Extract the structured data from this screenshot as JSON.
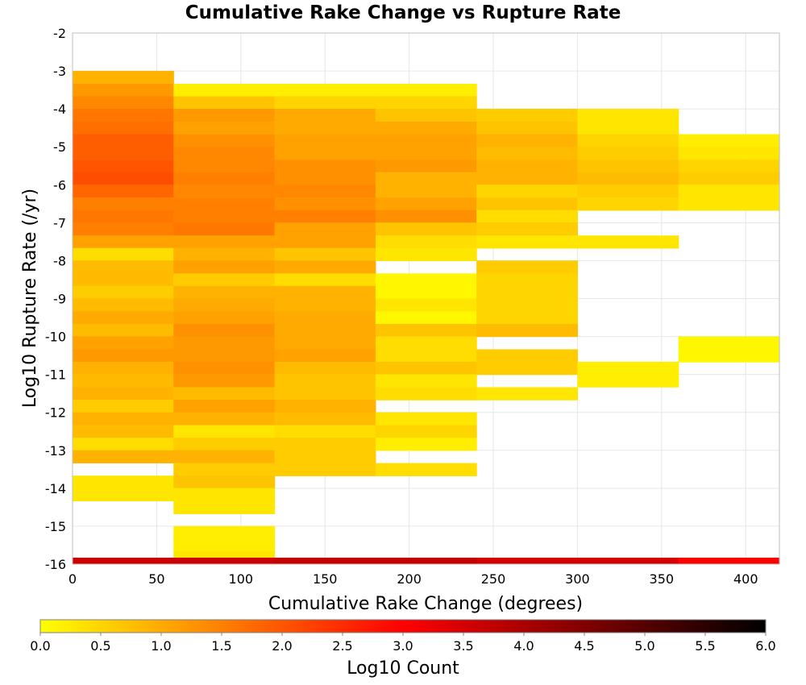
{
  "chart_data": {
    "type": "heatmap",
    "title": "Cumulative Rake Change vs Rupture Rate",
    "xlabel": "Cumulative Rake Change (degrees)",
    "ylabel": "Log10 Rupture Rate (/yr)",
    "xlim": [
      0,
      420
    ],
    "ylim": [
      -16,
      -2
    ],
    "x_ticks": [
      "0",
      "50",
      "100",
      "150",
      "200",
      "250",
      "300",
      "350",
      "400"
    ],
    "y_ticks": [
      "-2",
      "-3",
      "-4",
      "-5",
      "-6",
      "-7",
      "-8",
      "-9",
      "-10",
      "-11",
      "-12",
      "-13",
      "-14",
      "-15",
      "-16"
    ],
    "grid": true,
    "bin_width_x": 60,
    "bin_height_y": 0.333,
    "colorbar": {
      "label": "Log10 Count",
      "min": 0,
      "max": 6,
      "ticks": [
        "0.0",
        "0.5",
        "1.0",
        "1.5",
        "2.0",
        "2.5",
        "3.0",
        "3.5",
        "4.0",
        "4.5",
        "5.0",
        "5.5",
        "6.0"
      ],
      "colormap": [
        "#ffff00",
        "#ff8000",
        "#ff0000",
        "#800000",
        "#000000"
      ]
    },
    "columns": [
      {
        "x": 0,
        "cells": [
          {
            "y": -3.33,
            "v": 0.9
          },
          {
            "y": -3.67,
            "v": 1.2
          },
          {
            "y": -4.0,
            "v": 1.4
          },
          {
            "y": -4.33,
            "v": 1.6
          },
          {
            "y": -4.67,
            "v": 1.7
          },
          {
            "y": -5.0,
            "v": 1.9
          },
          {
            "y": -5.33,
            "v": 1.9
          },
          {
            "y": -5.67,
            "v": 2.0
          },
          {
            "y": -6.0,
            "v": 2.1
          },
          {
            "y": -6.33,
            "v": 1.8
          },
          {
            "y": -6.67,
            "v": 1.5
          },
          {
            "y": -7.0,
            "v": 1.6
          },
          {
            "y": -7.33,
            "v": 1.5
          },
          {
            "y": -7.67,
            "v": 1.1
          },
          {
            "y": -8.0,
            "v": 0.4
          },
          {
            "y": -8.33,
            "v": 0.8
          },
          {
            "y": -8.67,
            "v": 0.8
          },
          {
            "y": -9.0,
            "v": 0.6
          },
          {
            "y": -9.33,
            "v": 0.8
          },
          {
            "y": -9.67,
            "v": 1.0
          },
          {
            "y": -10.0,
            "v": 0.8
          },
          {
            "y": -10.33,
            "v": 1.1
          },
          {
            "y": -10.67,
            "v": 1.2
          },
          {
            "y": -11.0,
            "v": 0.9
          },
          {
            "y": -11.33,
            "v": 0.8
          },
          {
            "y": -11.67,
            "v": 0.9
          },
          {
            "y": -12.0,
            "v": 0.6
          },
          {
            "y": -12.33,
            "v": 0.9
          },
          {
            "y": -12.67,
            "v": 0.8
          },
          {
            "y": -13.0,
            "v": 0.4
          },
          {
            "y": -13.33,
            "v": 0.9
          },
          {
            "y": -14.0,
            "v": 0.3
          },
          {
            "y": -14.33,
            "v": 0.3
          }
        ]
      },
      {
        "x": 60,
        "cells": [
          {
            "y": -3.67,
            "v": 0.2
          },
          {
            "y": -4.0,
            "v": 0.7
          },
          {
            "y": -4.33,
            "v": 1.2
          },
          {
            "y": -4.67,
            "v": 1.1
          },
          {
            "y": -5.0,
            "v": 1.3
          },
          {
            "y": -5.33,
            "v": 1.4
          },
          {
            "y": -5.67,
            "v": 1.4
          },
          {
            "y": -6.0,
            "v": 1.5
          },
          {
            "y": -6.33,
            "v": 1.4
          },
          {
            "y": -6.67,
            "v": 1.5
          },
          {
            "y": -7.0,
            "v": 1.5
          },
          {
            "y": -7.33,
            "v": 1.6
          },
          {
            "y": -7.67,
            "v": 1.1
          },
          {
            "y": -8.0,
            "v": 0.9
          },
          {
            "y": -8.33,
            "v": 1.1
          },
          {
            "y": -8.67,
            "v": 0.6
          },
          {
            "y": -9.0,
            "v": 0.9
          },
          {
            "y": -9.33,
            "v": 1.0
          },
          {
            "y": -9.67,
            "v": 1.1
          },
          {
            "y": -10.0,
            "v": 1.3
          },
          {
            "y": -10.33,
            "v": 1.2
          },
          {
            "y": -10.67,
            "v": 1.2
          },
          {
            "y": -11.0,
            "v": 1.3
          },
          {
            "y": -11.33,
            "v": 1.2
          },
          {
            "y": -11.67,
            "v": 0.8
          },
          {
            "y": -12.0,
            "v": 1.1
          },
          {
            "y": -12.33,
            "v": 0.9
          },
          {
            "y": -12.67,
            "v": 0.3
          },
          {
            "y": -13.0,
            "v": 0.6
          },
          {
            "y": -13.33,
            "v": 0.9
          },
          {
            "y": -13.67,
            "v": 0.6
          },
          {
            "y": -14.0,
            "v": 0.7
          },
          {
            "y": -14.33,
            "v": 0.3
          },
          {
            "y": -14.67,
            "v": 0.3
          },
          {
            "y": -15.33,
            "v": 0.2
          },
          {
            "y": -15.67,
            "v": 0.2
          },
          {
            "y": -16.0,
            "v": 0.3
          }
        ]
      },
      {
        "x": 120,
        "cells": [
          {
            "y": -3.67,
            "v": 0.2
          },
          {
            "y": -4.0,
            "v": 0.5
          },
          {
            "y": -4.33,
            "v": 1.0
          },
          {
            "y": -4.67,
            "v": 1.0
          },
          {
            "y": -5.0,
            "v": 1.1
          },
          {
            "y": -5.33,
            "v": 1.1
          },
          {
            "y": -5.67,
            "v": 1.3
          },
          {
            "y": -6.0,
            "v": 1.3
          },
          {
            "y": -6.33,
            "v": 1.4
          },
          {
            "y": -6.67,
            "v": 1.3
          },
          {
            "y": -7.0,
            "v": 1.5
          },
          {
            "y": -7.33,
            "v": 1.1
          },
          {
            "y": -7.67,
            "v": 1.1
          },
          {
            "y": -8.0,
            "v": 0.7
          },
          {
            "y": -8.33,
            "v": 1.0
          },
          {
            "y": -8.67,
            "v": 0.4
          },
          {
            "y": -9.0,
            "v": 0.9
          },
          {
            "y": -9.33,
            "v": 0.9
          },
          {
            "y": -9.67,
            "v": 1.0
          },
          {
            "y": -10.0,
            "v": 1.0
          },
          {
            "y": -10.33,
            "v": 1.0
          },
          {
            "y": -10.67,
            "v": 1.1
          },
          {
            "y": -11.0,
            "v": 0.8
          },
          {
            "y": -11.33,
            "v": 0.7
          },
          {
            "y": -11.67,
            "v": 0.7
          },
          {
            "y": -12.0,
            "v": 0.9
          },
          {
            "y": -12.33,
            "v": 0.8
          },
          {
            "y": -12.67,
            "v": 0.4
          },
          {
            "y": -13.0,
            "v": 0.6
          },
          {
            "y": -13.33,
            "v": 0.6
          },
          {
            "y": -13.67,
            "v": 0.6
          }
        ]
      },
      {
        "x": 180,
        "cells": [
          {
            "y": -3.67,
            "v": 0.2
          },
          {
            "y": -4.0,
            "v": 0.5
          },
          {
            "y": -4.33,
            "v": 0.7
          },
          {
            "y": -4.67,
            "v": 1.0
          },
          {
            "y": -5.0,
            "v": 1.1
          },
          {
            "y": -5.33,
            "v": 1.1
          },
          {
            "y": -5.67,
            "v": 1.2
          },
          {
            "y": -6.0,
            "v": 0.9
          },
          {
            "y": -6.33,
            "v": 0.9
          },
          {
            "y": -6.67,
            "v": 1.1
          },
          {
            "y": -7.0,
            "v": 1.3
          },
          {
            "y": -7.33,
            "v": 0.7
          },
          {
            "y": -7.67,
            "v": 0.4
          },
          {
            "y": -8.0,
            "v": 0.3
          },
          {
            "y": -8.67,
            "v": 0.1
          },
          {
            "y": -9.0,
            "v": 0.1
          },
          {
            "y": -9.33,
            "v": 0.3
          },
          {
            "y": -9.67,
            "v": 0.1
          },
          {
            "y": -10.0,
            "v": 0.7
          },
          {
            "y": -10.33,
            "v": 0.4
          },
          {
            "y": -10.67,
            "v": 0.4
          },
          {
            "y": -11.0,
            "v": 0.7
          },
          {
            "y": -11.33,
            "v": 0.3
          },
          {
            "y": -11.67,
            "v": 0.4
          },
          {
            "y": -12.33,
            "v": 0.3
          },
          {
            "y": -12.67,
            "v": 0.5
          },
          {
            "y": -13.0,
            "v": 0.2
          },
          {
            "y": -13.67,
            "v": 0.4
          }
        ]
      },
      {
        "x": 240,
        "cells": [
          {
            "y": -4.33,
            "v": 0.6
          },
          {
            "y": -4.67,
            "v": 0.7
          },
          {
            "y": -5.0,
            "v": 0.9
          },
          {
            "y": -5.33,
            "v": 0.8
          },
          {
            "y": -5.67,
            "v": 0.9
          },
          {
            "y": -6.0,
            "v": 0.9
          },
          {
            "y": -6.33,
            "v": 0.5
          },
          {
            "y": -6.67,
            "v": 0.7
          },
          {
            "y": -7.0,
            "v": 0.4
          },
          {
            "y": -7.33,
            "v": 0.6
          },
          {
            "y": -7.67,
            "v": 0.3
          },
          {
            "y": -8.33,
            "v": 0.6
          },
          {
            "y": -8.67,
            "v": 0.5
          },
          {
            "y": -9.0,
            "v": 0.5
          },
          {
            "y": -9.33,
            "v": 0.5
          },
          {
            "y": -9.67,
            "v": 0.5
          },
          {
            "y": -10.0,
            "v": 0.8
          },
          {
            "y": -10.67,
            "v": 0.6
          },
          {
            "y": -11.0,
            "v": 0.6
          },
          {
            "y": -11.67,
            "v": 0.3
          }
        ]
      },
      {
        "x": 300,
        "cells": [
          {
            "y": -4.33,
            "v": 0.3
          },
          {
            "y": -4.67,
            "v": 0.3
          },
          {
            "y": -5.0,
            "v": 0.5
          },
          {
            "y": -5.33,
            "v": 0.6
          },
          {
            "y": -5.67,
            "v": 0.7
          },
          {
            "y": -6.0,
            "v": 0.8
          },
          {
            "y": -6.33,
            "v": 0.6
          },
          {
            "y": -6.67,
            "v": 0.5
          },
          {
            "y": -7.67,
            "v": 0.3
          },
          {
            "y": -11.0,
            "v": 0.2
          },
          {
            "y": -11.33,
            "v": 0.2
          }
        ]
      },
      {
        "x": 360,
        "cells": [
          {
            "y": -5.0,
            "v": 0.2
          },
          {
            "y": -5.33,
            "v": 0.3
          },
          {
            "y": -5.67,
            "v": 0.5
          },
          {
            "y": -6.0,
            "v": 0.6
          },
          {
            "y": -6.33,
            "v": 0.3
          },
          {
            "y": -6.67,
            "v": 0.3
          },
          {
            "y": -10.33,
            "v": 0.1
          },
          {
            "y": -10.67,
            "v": 0.1
          }
        ]
      }
    ],
    "bottom_row": {
      "y_top": -15.83,
      "y_bottom": -16.0,
      "values": [
        3.6,
        3.6,
        3.7,
        3.7,
        3.5,
        3.5,
        3.0
      ]
    }
  }
}
